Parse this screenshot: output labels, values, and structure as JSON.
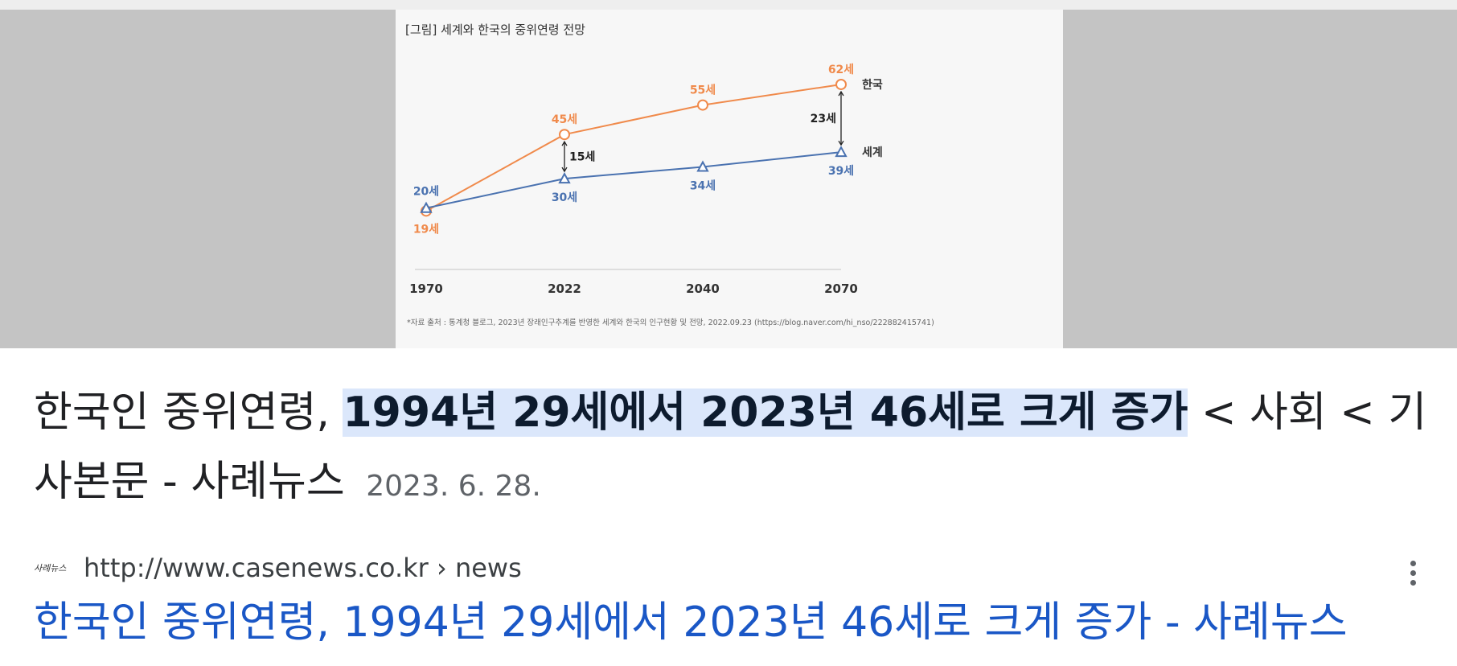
{
  "hero_image": {
    "chart_data": {
      "type": "line",
      "title": "[그림] 세계와 한국의 중위연령 전망",
      "categories": [
        "1970",
        "2022",
        "2040",
        "2070"
      ],
      "series": [
        {
          "name": "한국",
          "values": [
            19,
            45,
            55,
            62
          ],
          "labels": [
            "19세",
            "45세",
            "55세",
            "62세"
          ],
          "color": "#f08a4b",
          "marker": "circle"
        },
        {
          "name": "세계",
          "values": [
            20,
            30,
            34,
            39
          ],
          "labels": [
            "20세",
            "30세",
            "34세",
            "39세"
          ],
          "color": "#4a72b0",
          "marker": "triangle"
        }
      ],
      "annotations": [
        {
          "category": "2022",
          "text": "15세"
        },
        {
          "category": "2070",
          "text": "23세"
        }
      ],
      "source_note": "*자료 출처 : 통계청 블로그, 2023년 장래인구추계를 반영한 세계와 한국의 인구현황 및 전망, 2022.09.23 (https://blog.naver.com/hi_nso/222882415741)",
      "grid": false
    }
  },
  "result": {
    "title_prefix": "한국인 중위연령, ",
    "title_highlight": "1994년 29세에서 2023년 46세로 크게 증가",
    "title_suffix": " < 사회 < 기사본문 - 사례뉴스",
    "date": "2023. 6. 28."
  },
  "source": {
    "favicon_text": "사례뉴스",
    "url": "http://www.casenews.co.kr › news"
  },
  "link": {
    "title": "한국인 중위연령, 1994년 29세에서 2023년 46세로 크게 증가 - 사례뉴스"
  },
  "colors": {
    "link": "#1a57c6",
    "highlight": "#dbe7fb",
    "korea_series": "#f08a4b",
    "world_series": "#4a72b0"
  }
}
